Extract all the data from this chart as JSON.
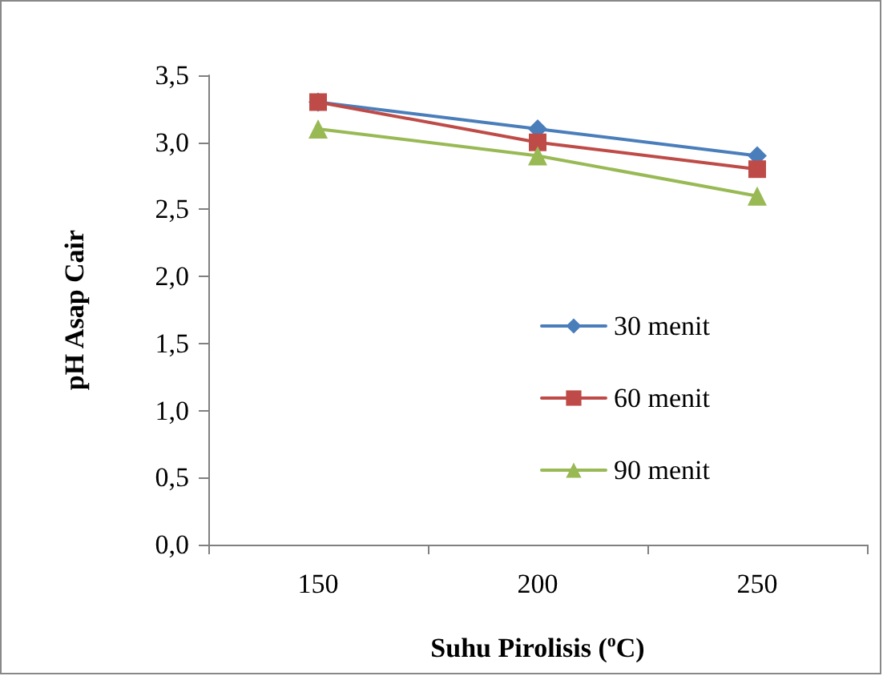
{
  "chart_data": {
    "type": "line",
    "categories": [
      "150",
      "200",
      "250"
    ],
    "xlabel": "Suhu Pirolisis ($^{o}$C)",
    "ylabel": "pH Asap Cair",
    "series": [
      {
        "name": "30 menit",
        "color": "#4a7ebb",
        "marker": "diamond",
        "values": [
          3.3,
          3.1,
          2.9
        ]
      },
      {
        "name": "60 menit",
        "color": "#be4b48",
        "marker": "square",
        "values": [
          3.3,
          3.0,
          2.8
        ]
      },
      {
        "name": "90 menit",
        "color": "#98b954",
        "marker": "triangle",
        "values": [
          3.1,
          2.9,
          2.6
        ]
      }
    ],
    "ylim": [
      0,
      3.5
    ],
    "yticks": [
      {
        "value": 0,
        "label": "0,0"
      },
      {
        "value": 0.5,
        "label": "0,5"
      },
      {
        "value": 1,
        "label": "1,0"
      },
      {
        "value": 1.5,
        "label": "1,5"
      },
      {
        "value": 2,
        "label": "2,0"
      },
      {
        "value": 2.5,
        "label": "2,5"
      },
      {
        "value": 3,
        "label": "3,0"
      },
      {
        "value": 3.5,
        "label": "3,5"
      }
    ],
    "grid": false,
    "legend": "right",
    "line_style": "solid"
  }
}
